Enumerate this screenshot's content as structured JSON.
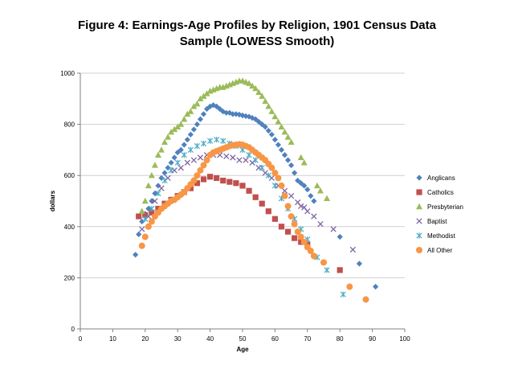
{
  "chart_data": {
    "type": "scatter",
    "title_lines": [
      "Figure 4: Earnings-Age Profiles by Religion, 1901 Census Data",
      "Sample (LOWESS Smooth)"
    ],
    "xlabel": "Age",
    "ylabel": "dollars",
    "xlim": [
      0,
      100
    ],
    "ylim": [
      0,
      1000
    ],
    "xticks": [
      0,
      10,
      20,
      30,
      40,
      50,
      60,
      70,
      80,
      90,
      100
    ],
    "yticks": [
      0,
      200,
      400,
      600,
      800,
      1000
    ],
    "grid": "horizontal",
    "legend_position": "right",
    "series": [
      {
        "name": "Anglicans",
        "marker": "diamond",
        "color": "#4f81bd",
        "x": [
          17,
          18,
          19,
          20,
          21,
          22,
          23,
          24,
          25,
          26,
          27,
          28,
          29,
          30,
          31,
          32,
          33,
          34,
          35,
          36,
          37,
          38,
          39,
          40,
          41,
          42,
          43,
          44,
          45,
          46,
          47,
          48,
          49,
          50,
          51,
          52,
          53,
          54,
          55,
          56,
          57,
          58,
          59,
          60,
          61,
          62,
          63,
          64,
          65,
          66,
          67,
          68,
          69,
          70,
          71,
          72,
          80,
          86,
          91
        ],
        "y": [
          290,
          370,
          420,
          450,
          470,
          500,
          530,
          560,
          590,
          610,
          630,
          650,
          670,
          690,
          700,
          720,
          740,
          760,
          780,
          800,
          820,
          840,
          860,
          870,
          875,
          870,
          860,
          850,
          845,
          845,
          840,
          840,
          838,
          835,
          832,
          830,
          825,
          820,
          810,
          800,
          790,
          775,
          760,
          740,
          720,
          700,
          680,
          660,
          640,
          610,
          580,
          570,
          560,
          545,
          520,
          500,
          360,
          255,
          165
        ]
      },
      {
        "name": "Catholics",
        "marker": "square",
        "color": "#c0504d",
        "x": [
          18,
          20,
          22,
          24,
          26,
          28,
          30,
          32,
          34,
          36,
          38,
          40,
          42,
          44,
          46,
          48,
          50,
          52,
          54,
          56,
          58,
          60,
          62,
          64,
          66,
          68,
          70,
          80
        ],
        "y": [
          440,
          445,
          455,
          470,
          490,
          505,
          520,
          535,
          550,
          570,
          585,
          595,
          590,
          580,
          575,
          570,
          560,
          540,
          515,
          490,
          460,
          430,
          400,
          380,
          355,
          340,
          330,
          230
        ]
      },
      {
        "name": "Presbyterian",
        "marker": "triangle",
        "color": "#9bbb59",
        "x": [
          19,
          20,
          21,
          22,
          23,
          24,
          25,
          26,
          27,
          28,
          29,
          30,
          31,
          32,
          33,
          34,
          35,
          36,
          37,
          38,
          39,
          40,
          41,
          42,
          43,
          44,
          45,
          46,
          47,
          48,
          49,
          50,
          51,
          52,
          53,
          54,
          55,
          56,
          57,
          58,
          59,
          60,
          61,
          62,
          63,
          64,
          65,
          68,
          69,
          73,
          74,
          76
        ],
        "y": [
          460,
          500,
          560,
          600,
          640,
          680,
          700,
          730,
          750,
          770,
          780,
          790,
          800,
          820,
          840,
          850,
          870,
          880,
          900,
          910,
          920,
          930,
          935,
          940,
          945,
          945,
          950,
          955,
          960,
          965,
          970,
          970,
          965,
          960,
          950,
          940,
          925,
          910,
          890,
          870,
          850,
          830,
          810,
          790,
          770,
          750,
          730,
          670,
          650,
          560,
          540,
          510
        ]
      },
      {
        "name": "Baptist",
        "marker": "x",
        "color": "#8064a2",
        "x": [
          19,
          21,
          23,
          25,
          27,
          29,
          31,
          33,
          35,
          37,
          39,
          41,
          43,
          45,
          47,
          49,
          51,
          53,
          55,
          57,
          59,
          61,
          63,
          65,
          67,
          68,
          69,
          70,
          72,
          74,
          78,
          84
        ],
        "y": [
          390,
          440,
          500,
          550,
          590,
          620,
          630,
          650,
          660,
          670,
          680,
          680,
          680,
          675,
          670,
          660,
          660,
          650,
          630,
          610,
          590,
          560,
          540,
          520,
          495,
          480,
          475,
          460,
          440,
          410,
          390,
          310
        ]
      },
      {
        "name": "Methodist",
        "marker": "asterisk",
        "color": "#4bacc6",
        "x": [
          20,
          22,
          24,
          26,
          28,
          30,
          32,
          34,
          36,
          38,
          40,
          42,
          44,
          46,
          48,
          50,
          52,
          54,
          56,
          58,
          60,
          62,
          64,
          66,
          68,
          70,
          73,
          76,
          81
        ],
        "y": [
          430,
          470,
          530,
          580,
          620,
          650,
          680,
          700,
          715,
          725,
          735,
          740,
          735,
          725,
          715,
          700,
          680,
          660,
          630,
          600,
          560,
          510,
          470,
          430,
          390,
          350,
          280,
          230,
          135
        ]
      },
      {
        "name": "All Other",
        "marker": "circle",
        "color": "#f79646",
        "x": [
          19,
          20,
          21,
          22,
          23,
          24,
          25,
          26,
          27,
          28,
          29,
          30,
          31,
          32,
          33,
          34,
          35,
          36,
          37,
          38,
          39,
          40,
          41,
          42,
          43,
          44,
          45,
          46,
          47,
          48,
          49,
          50,
          51,
          52,
          53,
          54,
          55,
          56,
          57,
          58,
          59,
          60,
          61,
          62,
          63,
          64,
          65,
          66,
          67,
          68,
          69,
          70,
          71,
          72,
          75,
          83,
          88
        ],
        "y": [
          325,
          360,
          400,
          420,
          440,
          455,
          470,
          480,
          490,
          500,
          505,
          515,
          525,
          535,
          550,
          565,
          580,
          600,
          620,
          640,
          660,
          680,
          690,
          695,
          700,
          705,
          710,
          715,
          718,
          720,
          722,
          720,
          715,
          710,
          700,
          690,
          680,
          670,
          660,
          645,
          630,
          610,
          590,
          560,
          520,
          480,
          440,
          410,
          380,
          360,
          340,
          320,
          305,
          285,
          260,
          165,
          115
        ]
      }
    ]
  }
}
